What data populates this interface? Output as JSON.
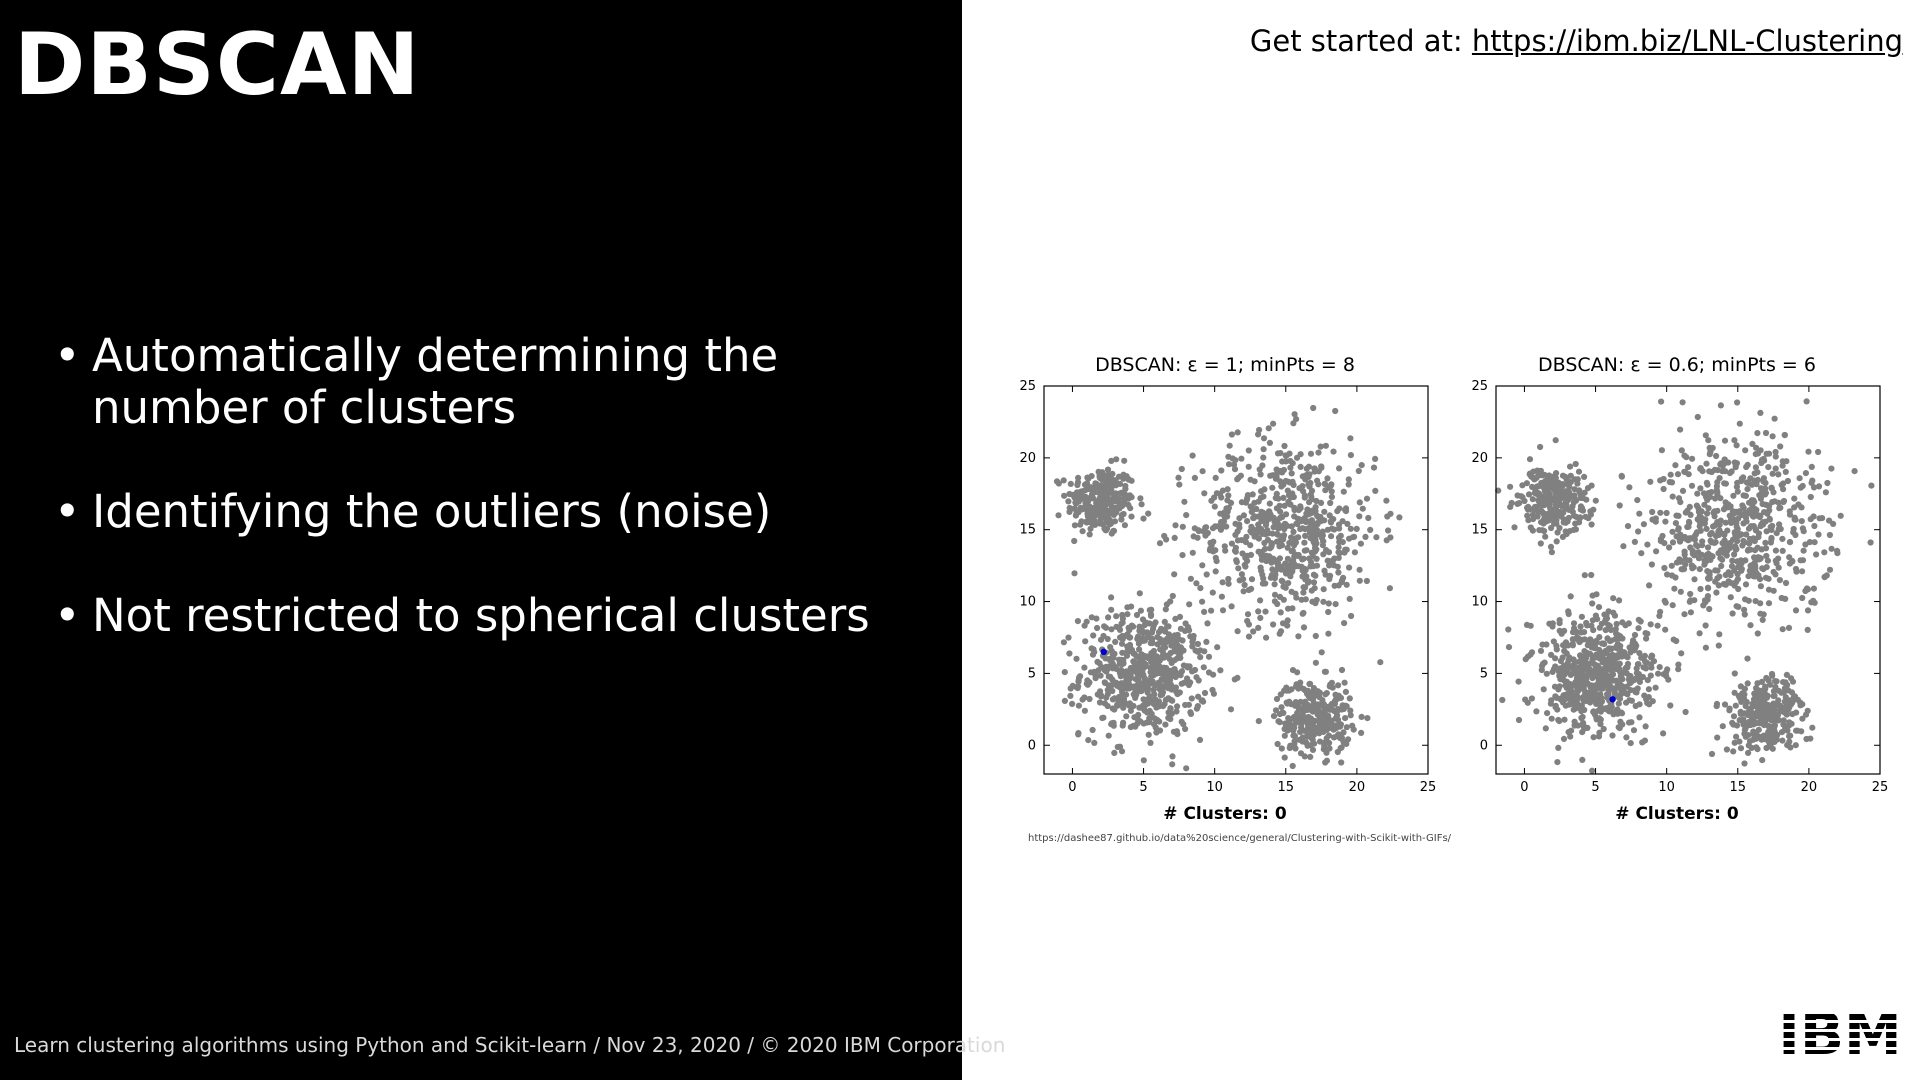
{
  "slide": {
    "title": "DBSCAN",
    "bullets": [
      "Automatically determining the number of clusters",
      "Identifying the outliers (noise)",
      "Not restricted to spherical clusters"
    ],
    "footer": "Learn clustering algorithms using Python and Scikit-learn / Nov 23, 2020 / © 2020 IBM Corporation",
    "get_started_label": "Get started at:",
    "get_started_url": "https://ibm.biz/LNL-Clustering",
    "image_source": "https://dashee87.github.io/data%20science/general/Clustering-with-Scikit-with-GIFs/",
    "logo_text": "IBM"
  },
  "chart_data": [
    {
      "type": "scatter",
      "title": "DBSCAN: ε = 1; minPts = 8",
      "caption": "# Clusters: 0",
      "xlim": [
        -2,
        25
      ],
      "ylim": [
        -2,
        25
      ],
      "xticks": [
        0,
        5,
        10,
        15,
        20,
        25
      ],
      "yticks": [
        0,
        5,
        10,
        15,
        20,
        25
      ],
      "point_color": "#808080",
      "highlight_color": "#0000cc",
      "highlight": {
        "x": 2.2,
        "y": 6.5
      },
      "blobs": [
        {
          "cx": 2.0,
          "cy": 17.0,
          "sd": 1.2,
          "n": 260
        },
        {
          "cx": 5.0,
          "cy": 5.0,
          "sd": 2.2,
          "n": 600
        },
        {
          "cx": 15.0,
          "cy": 15.0,
          "sd": 3.2,
          "n": 650
        },
        {
          "cx": 17.0,
          "cy": 2.0,
          "sd": 1.3,
          "n": 300
        }
      ]
    },
    {
      "type": "scatter",
      "title": "DBSCAN: ε = 0.6; minPts = 6",
      "caption": "# Clusters: 0",
      "xlim": [
        -2,
        25
      ],
      "ylim": [
        -2,
        25
      ],
      "xticks": [
        0,
        5,
        10,
        15,
        20,
        25
      ],
      "yticks": [
        0,
        5,
        10,
        15,
        20,
        25
      ],
      "point_color": "#808080",
      "highlight_color": "#0000cc",
      "highlight": {
        "x": 6.2,
        "y": 3.2
      },
      "blobs": [
        {
          "cx": 2.0,
          "cy": 17.0,
          "sd": 1.2,
          "n": 260
        },
        {
          "cx": 5.0,
          "cy": 5.0,
          "sd": 2.2,
          "n": 600
        },
        {
          "cx": 15.0,
          "cy": 15.0,
          "sd": 3.2,
          "n": 650
        },
        {
          "cx": 17.0,
          "cy": 2.0,
          "sd": 1.3,
          "n": 300
        }
      ]
    }
  ]
}
